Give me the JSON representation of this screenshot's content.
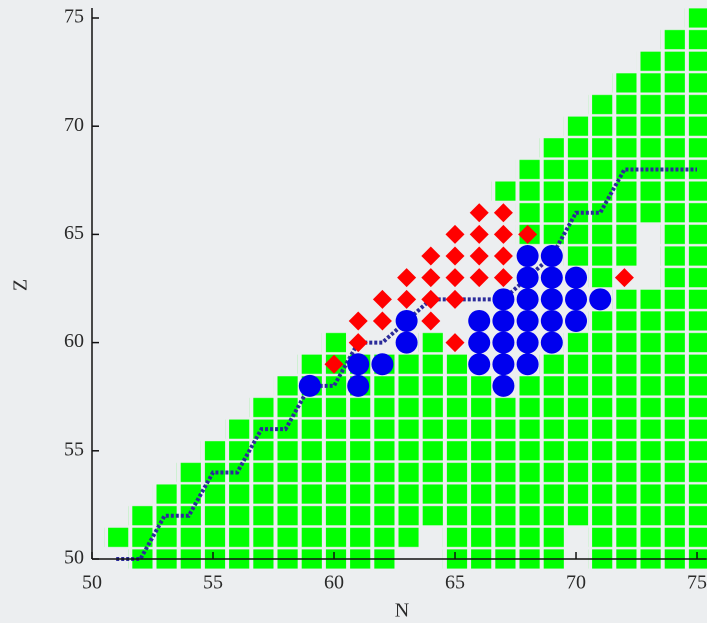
{
  "chart_data": {
    "type": "nuclide",
    "x_label": "N",
    "y_label": "Z",
    "xlim": [
      50,
      75.4
    ],
    "ylim": [
      50,
      75
    ],
    "xticks": [
      50,
      55,
      60,
      65,
      70,
      75
    ],
    "yticks": [
      50,
      55,
      60,
      65,
      70,
      75
    ],
    "squares": {
      "color": "#00ff00",
      "x": [
        51,
        52,
        53,
        54,
        55,
        56,
        57,
        58,
        59,
        60,
        61,
        62,
        63,
        64,
        65,
        66,
        67,
        67,
        68,
        68,
        69,
        69,
        70,
        70,
        71,
        71,
        72,
        72,
        73,
        73,
        74,
        75
      ],
      "low": [
        51,
        50,
        50,
        50,
        50,
        50,
        50,
        50,
        50,
        50,
        50,
        50,
        51,
        52,
        50,
        50,
        50,
        67,
        50,
        65,
        50,
        65,
        52,
        64,
        50,
        63,
        50,
        64,
        50,
        66,
        50,
        50
      ],
      "high": [
        51,
        52,
        53,
        54,
        55,
        56,
        57,
        58,
        59,
        60,
        59,
        59,
        59,
        60,
        59,
        58,
        57,
        67,
        58,
        68,
        59,
        69,
        60,
        70,
        61,
        71,
        62,
        72,
        62,
        73,
        74,
        75
      ]
    },
    "diamonds": {
      "color": "#ff0000",
      "x": [
        60,
        61,
        61,
        62,
        62,
        63,
        63,
        64,
        64,
        64,
        64,
        65,
        65,
        65,
        65,
        65,
        66,
        66,
        66,
        66,
        67,
        67,
        67,
        67,
        68,
        72
      ],
      "y": [
        59,
        60,
        61,
        61,
        62,
        62,
        63,
        61,
        63,
        64,
        62,
        60,
        62,
        63,
        64,
        65,
        63,
        64,
        65,
        66,
        63,
        64,
        65,
        66,
        65,
        63
      ]
    },
    "circles": {
      "color": "#0000ee",
      "x": [
        59,
        61,
        61,
        62,
        63,
        63,
        66,
        66,
        66,
        67,
        67,
        67,
        67,
        67,
        68,
        68,
        68,
        68,
        68,
        68,
        69,
        69,
        69,
        69,
        69,
        70,
        70,
        70,
        71
      ],
      "y": [
        58,
        58,
        59,
        59,
        60,
        61,
        59,
        60,
        61,
        58,
        59,
        60,
        61,
        62,
        59,
        60,
        61,
        62,
        63,
        64,
        60,
        61,
        62,
        63,
        64,
        61,
        62,
        63,
        62
      ]
    },
    "line": {
      "color": "#2b2b9a",
      "x": [
        51,
        52,
        53,
        54,
        55,
        56,
        57,
        58,
        59,
        60,
        61,
        62,
        63,
        64,
        67,
        69,
        70,
        71,
        72,
        75
      ],
      "y": [
        50,
        50,
        52,
        52,
        54,
        54,
        56,
        56,
        58,
        58,
        60,
        60,
        61,
        62,
        62,
        64,
        66,
        66,
        68,
        68
      ]
    }
  }
}
